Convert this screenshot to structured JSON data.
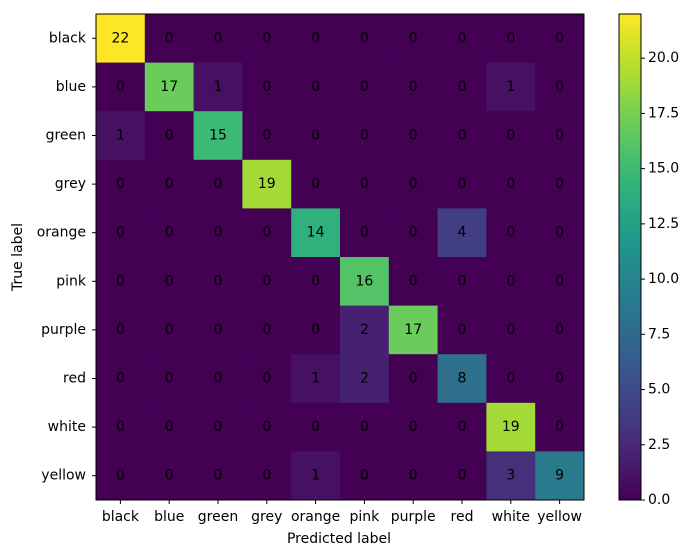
{
  "chart_data": {
    "type": "heatmap",
    "x_label": "Predicted label",
    "y_label": "True label",
    "x_categories": [
      "black",
      "blue",
      "green",
      "grey",
      "orange",
      "pink",
      "purple",
      "red",
      "white",
      "yellow"
    ],
    "y_categories": [
      "black",
      "blue",
      "green",
      "grey",
      "orange",
      "pink",
      "purple",
      "red",
      "white",
      "yellow"
    ],
    "values": [
      [
        22,
        0,
        0,
        0,
        0,
        0,
        0,
        0,
        0,
        0
      ],
      [
        0,
        17,
        1,
        0,
        0,
        0,
        0,
        0,
        1,
        0
      ],
      [
        1,
        0,
        15,
        0,
        0,
        0,
        0,
        0,
        0,
        0
      ],
      [
        0,
        0,
        0,
        19,
        0,
        0,
        0,
        0,
        0,
        0
      ],
      [
        0,
        0,
        0,
        0,
        14,
        0,
        0,
        4,
        0,
        0
      ],
      [
        0,
        0,
        0,
        0,
        0,
        16,
        0,
        0,
        0,
        0
      ],
      [
        0,
        0,
        0,
        0,
        0,
        2,
        17,
        0,
        0,
        0
      ],
      [
        0,
        0,
        0,
        0,
        1,
        2,
        0,
        8,
        0,
        0
      ],
      [
        0,
        0,
        0,
        0,
        0,
        0,
        0,
        0,
        19,
        0
      ],
      [
        0,
        0,
        0,
        0,
        1,
        0,
        0,
        0,
        3,
        9
      ]
    ],
    "colormap": "viridis",
    "clim": [
      0,
      22
    ],
    "cticks": [
      {
        "value": 0,
        "label": "0.0"
      },
      2.5,
      {
        "value": 5,
        "label": "5.0"
      },
      7.5,
      {
        "value": 10,
        "label": "10.0"
      },
      12.5,
      {
        "value": 15,
        "label": "15.0"
      },
      17.5,
      {
        "value": 20,
        "label": "20.0"
      }
    ]
  }
}
